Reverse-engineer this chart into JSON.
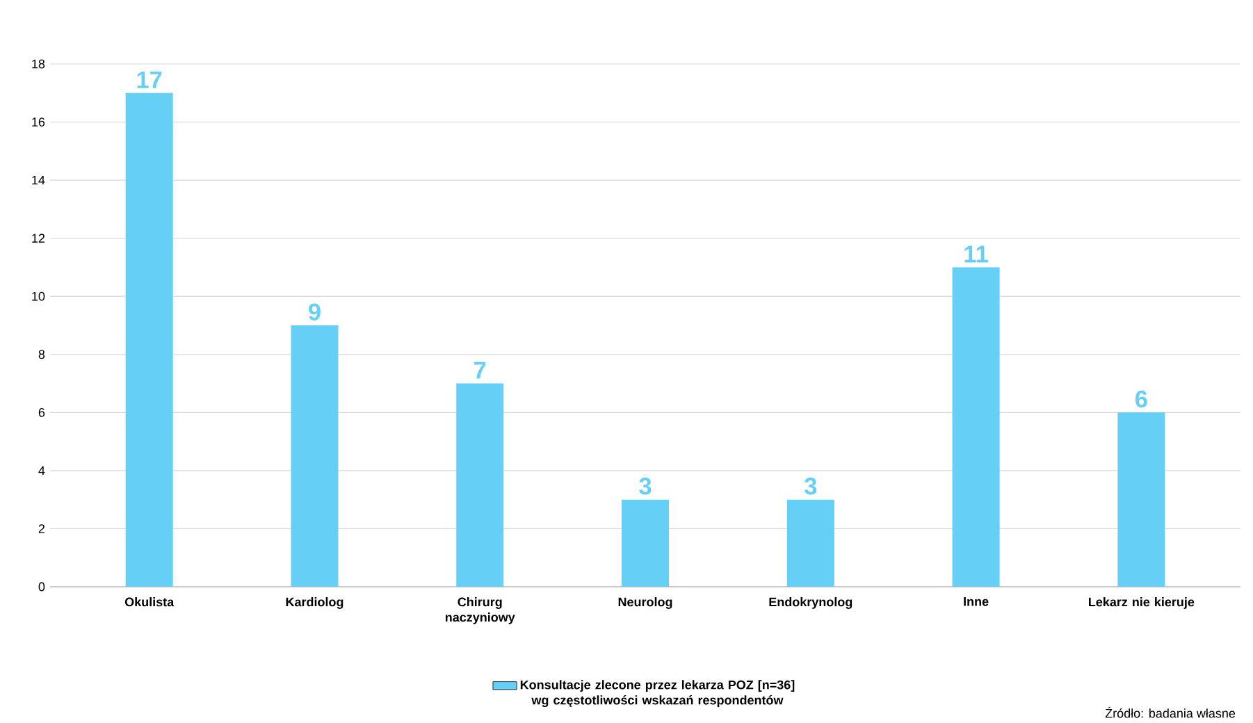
{
  "chart_data": {
    "type": "bar",
    "categories": [
      "Okulista",
      "Kardiolog",
      "Chirurg naczyniowy",
      "Neurolog",
      "Endokrynolog",
      "Inne",
      "Lekarz nie kieruje"
    ],
    "series": [
      {
        "name": "Konsultacje zlecone przez lekarza POZ [n=36] wg częstotliwości wskazań respondentów",
        "color": "#66cff5",
        "values": [
          17,
          9,
          7,
          3,
          3,
          11,
          6
        ]
      }
    ],
    "ylim": [
      0,
      18
    ],
    "yticks": [
      0,
      2,
      4,
      6,
      8,
      10,
      12,
      14,
      16,
      18
    ],
    "grid": "y",
    "legend": "bottom",
    "data_labels": true,
    "annotations": [
      "Źródło: badania własne"
    ]
  }
}
